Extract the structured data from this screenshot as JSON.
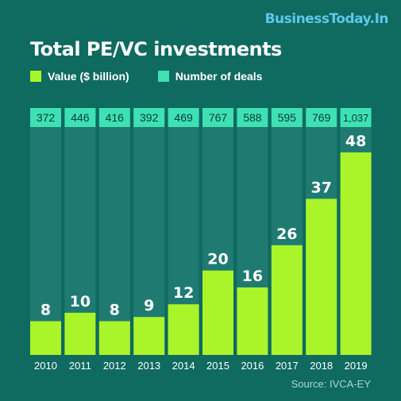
{
  "brand": "BusinessToday.In",
  "source": "Source: IVCA-EY",
  "colors": {
    "background": "#0f6a5f",
    "bar_background": "#1f7b72",
    "value_bar": "#aaf42a",
    "deal_box": "#3ee0b4",
    "brand": "#5ec8ec"
  },
  "chart_data": {
    "type": "bar",
    "title": "Total PE/VC investments",
    "categories": [
      "2010",
      "2011",
      "2012",
      "2013",
      "2014",
      "2015",
      "2016",
      "2017",
      "2018",
      "2019"
    ],
    "series": [
      {
        "name": "Value ($ billion)",
        "values": [
          8,
          10,
          8,
          9,
          12,
          20,
          16,
          26,
          37,
          48
        ]
      },
      {
        "name": "Number of deals",
        "values": [
          372,
          446,
          416,
          392,
          469,
          767,
          588,
          595,
          769,
          1037
        ],
        "labels": [
          "372",
          "446",
          "416",
          "392",
          "469",
          "767",
          "588",
          "595",
          "769",
          "1,037"
        ]
      }
    ],
    "ylim": [
      0,
      54
    ],
    "legend": "top-left"
  }
}
